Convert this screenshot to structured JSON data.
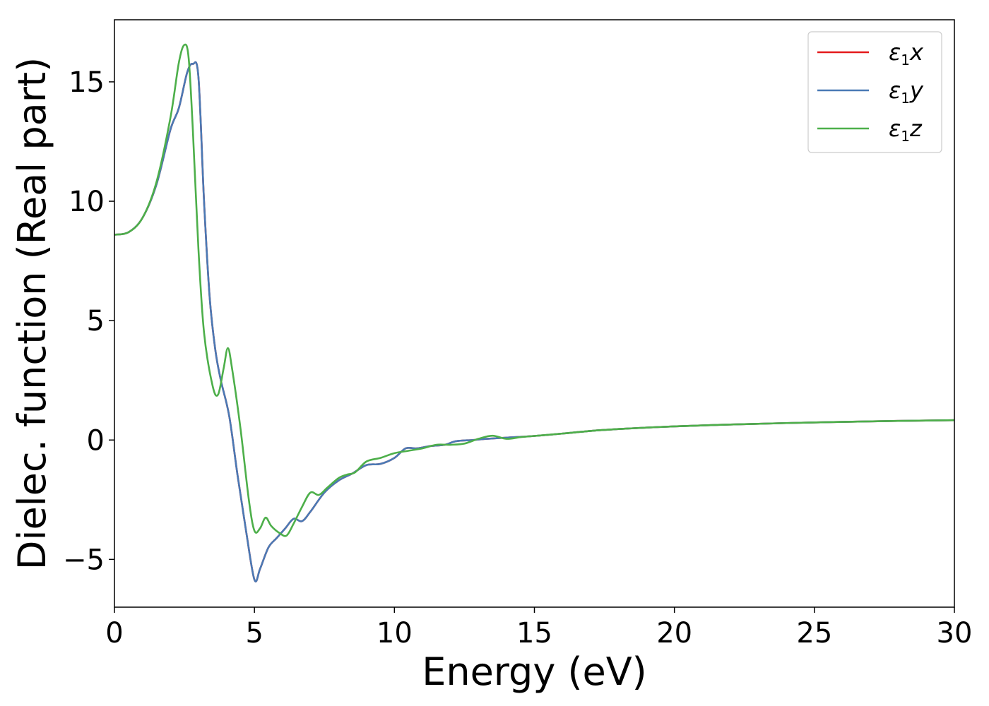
{
  "chart_data": {
    "type": "line",
    "xlabel": "Energy (eV)",
    "ylabel": "Dielec. function (Real part)",
    "xlim": [
      0,
      30
    ],
    "ylim": [
      -7,
      17.6
    ],
    "xticks": [
      0,
      5,
      10,
      15,
      20,
      25,
      30
    ],
    "xtick_labels": [
      "0",
      "5",
      "10",
      "15",
      "20",
      "25",
      "30"
    ],
    "yticks": [
      -5,
      0,
      5,
      10,
      15
    ],
    "ytick_labels": [
      "−5",
      "0",
      "5",
      "10",
      "15"
    ],
    "grid": false,
    "legend_position": "top-right",
    "series": [
      {
        "name": "ε₁x",
        "legend": {
          "symbol": "ε",
          "sub": "1",
          "axis": "x"
        },
        "color": "#e41a1c",
        "points": [
          [
            0,
            8.6
          ],
          [
            0.5,
            8.7
          ],
          [
            1.0,
            9.3
          ],
          [
            1.5,
            10.7
          ],
          [
            2.0,
            13.0
          ],
          [
            2.3,
            13.9
          ],
          [
            2.6,
            15.4
          ],
          [
            2.8,
            15.75
          ],
          [
            3.0,
            15.2
          ],
          [
            3.2,
            10.0
          ],
          [
            3.4,
            6.0
          ],
          [
            3.6,
            3.8
          ],
          [
            3.8,
            2.5
          ],
          [
            4.1,
            1.0
          ],
          [
            4.4,
            -1.5
          ],
          [
            4.7,
            -3.8
          ],
          [
            5.0,
            -5.85
          ],
          [
            5.2,
            -5.4
          ],
          [
            5.5,
            -4.5
          ],
          [
            5.8,
            -4.1
          ],
          [
            6.1,
            -3.7
          ],
          [
            6.4,
            -3.3
          ],
          [
            6.7,
            -3.4
          ],
          [
            7.0,
            -3.0
          ],
          [
            7.5,
            -2.2
          ],
          [
            8.0,
            -1.7
          ],
          [
            8.5,
            -1.4
          ],
          [
            9.0,
            -1.05
          ],
          [
            9.5,
            -1.0
          ],
          [
            10.0,
            -0.75
          ],
          [
            10.4,
            -0.35
          ],
          [
            10.8,
            -0.35
          ],
          [
            11.3,
            -0.25
          ],
          [
            11.8,
            -0.2
          ],
          [
            12.2,
            -0.05
          ],
          [
            12.8,
            0.0
          ],
          [
            13.3,
            0.05
          ],
          [
            14.0,
            0.1
          ],
          [
            15.0,
            0.17
          ],
          [
            16.0,
            0.27
          ],
          [
            17.0,
            0.38
          ],
          [
            18.0,
            0.46
          ],
          [
            19.0,
            0.52
          ],
          [
            20.0,
            0.57
          ],
          [
            22.0,
            0.65
          ],
          [
            24.0,
            0.71
          ],
          [
            26.0,
            0.76
          ],
          [
            28.0,
            0.8
          ],
          [
            30.0,
            0.83
          ]
        ]
      },
      {
        "name": "ε₁y",
        "legend": {
          "symbol": "ε",
          "sub": "1",
          "axis": "y"
        },
        "color": "#4a7ab5",
        "points": [
          [
            0,
            8.6
          ],
          [
            0.5,
            8.7
          ],
          [
            1.0,
            9.3
          ],
          [
            1.5,
            10.7
          ],
          [
            2.0,
            13.0
          ],
          [
            2.3,
            13.9
          ],
          [
            2.6,
            15.4
          ],
          [
            2.8,
            15.75
          ],
          [
            3.0,
            15.2
          ],
          [
            3.2,
            10.0
          ],
          [
            3.4,
            6.0
          ],
          [
            3.6,
            3.8
          ],
          [
            3.8,
            2.5
          ],
          [
            4.1,
            1.0
          ],
          [
            4.4,
            -1.5
          ],
          [
            4.7,
            -3.8
          ],
          [
            5.0,
            -5.85
          ],
          [
            5.2,
            -5.4
          ],
          [
            5.5,
            -4.5
          ],
          [
            5.8,
            -4.1
          ],
          [
            6.1,
            -3.7
          ],
          [
            6.4,
            -3.3
          ],
          [
            6.7,
            -3.4
          ],
          [
            7.0,
            -3.0
          ],
          [
            7.5,
            -2.2
          ],
          [
            8.0,
            -1.7
          ],
          [
            8.5,
            -1.4
          ],
          [
            9.0,
            -1.05
          ],
          [
            9.5,
            -1.0
          ],
          [
            10.0,
            -0.75
          ],
          [
            10.4,
            -0.35
          ],
          [
            10.8,
            -0.35
          ],
          [
            11.3,
            -0.25
          ],
          [
            11.8,
            -0.2
          ],
          [
            12.2,
            -0.05
          ],
          [
            12.8,
            0.0
          ],
          [
            13.3,
            0.05
          ],
          [
            14.0,
            0.1
          ],
          [
            15.0,
            0.17
          ],
          [
            16.0,
            0.27
          ],
          [
            17.0,
            0.38
          ],
          [
            18.0,
            0.46
          ],
          [
            19.0,
            0.52
          ],
          [
            20.0,
            0.57
          ],
          [
            22.0,
            0.65
          ],
          [
            24.0,
            0.71
          ],
          [
            26.0,
            0.76
          ],
          [
            28.0,
            0.8
          ],
          [
            30.0,
            0.83
          ]
        ]
      },
      {
        "name": "ε₁z",
        "legend": {
          "symbol": "ε",
          "sub": "1",
          "axis": "z"
        },
        "color": "#4daf4a",
        "points": [
          [
            0,
            8.6
          ],
          [
            0.5,
            8.7
          ],
          [
            1.0,
            9.3
          ],
          [
            1.5,
            10.8
          ],
          [
            2.0,
            13.5
          ],
          [
            2.3,
            15.8
          ],
          [
            2.5,
            16.55
          ],
          [
            2.65,
            16.0
          ],
          [
            2.8,
            13.0
          ],
          [
            3.0,
            8.0
          ],
          [
            3.2,
            4.5
          ],
          [
            3.5,
            2.3
          ],
          [
            3.7,
            1.9
          ],
          [
            3.9,
            3.0
          ],
          [
            4.05,
            3.85
          ],
          [
            4.2,
            3.0
          ],
          [
            4.5,
            0.5
          ],
          [
            4.8,
            -2.5
          ],
          [
            5.0,
            -3.8
          ],
          [
            5.2,
            -3.7
          ],
          [
            5.4,
            -3.25
          ],
          [
            5.6,
            -3.6
          ],
          [
            5.9,
            -3.9
          ],
          [
            6.15,
            -4.0
          ],
          [
            6.4,
            -3.5
          ],
          [
            6.7,
            -2.8
          ],
          [
            7.0,
            -2.2
          ],
          [
            7.3,
            -2.3
          ],
          [
            7.6,
            -2.0
          ],
          [
            8.0,
            -1.6
          ],
          [
            8.3,
            -1.45
          ],
          [
            8.6,
            -1.35
          ],
          [
            9.0,
            -0.9
          ],
          [
            9.5,
            -0.75
          ],
          [
            10.0,
            -0.55
          ],
          [
            10.5,
            -0.45
          ],
          [
            11.0,
            -0.35
          ],
          [
            11.5,
            -0.2
          ],
          [
            12.0,
            -0.2
          ],
          [
            12.5,
            -0.15
          ],
          [
            13.0,
            0.05
          ],
          [
            13.5,
            0.18
          ],
          [
            14.0,
            0.05
          ],
          [
            14.5,
            0.12
          ],
          [
            15.0,
            0.17
          ],
          [
            16.0,
            0.27
          ],
          [
            17.0,
            0.38
          ],
          [
            18.0,
            0.46
          ],
          [
            19.0,
            0.52
          ],
          [
            20.0,
            0.57
          ],
          [
            22.0,
            0.65
          ],
          [
            24.0,
            0.71
          ],
          [
            26.0,
            0.76
          ],
          [
            28.0,
            0.8
          ],
          [
            30.0,
            0.83
          ]
        ]
      }
    ]
  }
}
